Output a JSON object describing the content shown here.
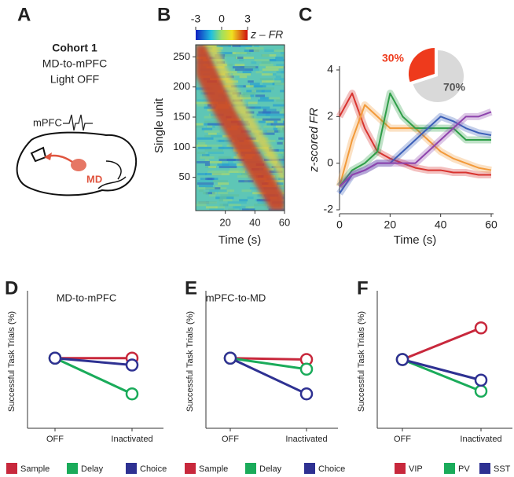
{
  "diagram": {
    "panel": "A",
    "title": "Cohort 1",
    "lines": [
      "MD-to-mPFC",
      "Light OFF"
    ],
    "region_labels": [
      "mPFC",
      "MD"
    ]
  },
  "chart_data": [
    {
      "type": "heatmap",
      "panel": "B",
      "ylabel": "Single unit",
      "xlabel": "Time (s)",
      "xlim": [
        0,
        60
      ],
      "xticks": [
        20,
        40,
        60
      ],
      "ylim": [
        0,
        270
      ],
      "yticks": [
        50,
        100,
        150,
        200,
        250
      ],
      "colorbar": {
        "label": "z – FR",
        "lim": [
          -3,
          3
        ],
        "ticks": [
          -3,
          0,
          3
        ]
      }
    },
    {
      "type": "line",
      "panel": "C",
      "ylabel": "z-scored FR",
      "xlabel": "Time (s)",
      "xlim": [
        0,
        60
      ],
      "xticks": [
        0,
        20,
        40,
        60
      ],
      "ylim": [
        -2,
        4
      ],
      "yticks": [
        -2,
        0,
        2,
        4
      ],
      "x": [
        0,
        5,
        10,
        15,
        20,
        25,
        30,
        35,
        40,
        45,
        50,
        55,
        60
      ],
      "series": [
        {
          "color": "#d8332f",
          "values": [
            2,
            3,
            1.5,
            0.5,
            0.2,
            0,
            -0.2,
            -0.3,
            -0.3,
            -0.4,
            -0.4,
            -0.5,
            -0.5
          ]
        },
        {
          "color": "#f29a3a",
          "values": [
            -1,
            1,
            2.5,
            2,
            1.5,
            1.5,
            1.5,
            1,
            0.5,
            0.2,
            0,
            -0.2,
            -0.3
          ]
        },
        {
          "color": "#2e9e48",
          "values": [
            -1,
            -0.3,
            0,
            0.5,
            3,
            2,
            1.5,
            1.5,
            1.5,
            1.5,
            1,
            1,
            1
          ]
        },
        {
          "color": "#3b5fb8",
          "values": [
            -1.3,
            -0.5,
            -0.3,
            0,
            0,
            0.5,
            1,
            1.5,
            2,
            1.8,
            1.5,
            1.3,
            1.2
          ]
        },
        {
          "color": "#8e44ad",
          "values": [
            -1,
            -0.5,
            -0.3,
            0,
            0,
            0,
            0,
            0.5,
            1,
            1.5,
            2,
            2,
            2.2
          ]
        }
      ],
      "inset": {
        "type": "pie",
        "values": [
          30,
          70
        ],
        "value_labels": [
          "30%",
          "70%"
        ],
        "colors": [
          "#ee3a1c",
          "#d9d9d9"
        ]
      }
    },
    {
      "type": "dumbbell",
      "panel": "D",
      "title": "MD-to-mPFC",
      "ylabel": "Successful Task Trials (%)",
      "categories": [
        "OFF",
        "Inactivated"
      ],
      "ylim": [
        0,
        100
      ],
      "series": [
        {
          "name": "Sample",
          "color": "#c8283c",
          "values": [
            51,
            51
          ]
        },
        {
          "name": "Delay",
          "color": "#1aab5a",
          "values": [
            51,
            25
          ]
        },
        {
          "name": "Choice",
          "color": "#2e3192",
          "values": [
            51,
            46
          ]
        }
      ]
    },
    {
      "type": "dumbbell",
      "panel": "E",
      "title": "mPFC-to-MD",
      "ylabel": "Successful Task Trials (%)",
      "categories": [
        "OFF",
        "Inactivated"
      ],
      "ylim": [
        0,
        100
      ],
      "series": [
        {
          "name": "Sample",
          "color": "#c8283c",
          "values": [
            51,
            50
          ]
        },
        {
          "name": "Delay",
          "color": "#1aab5a",
          "values": [
            51,
            43
          ]
        },
        {
          "name": "Choice",
          "color": "#2e3192",
          "values": [
            51,
            25
          ]
        }
      ]
    },
    {
      "type": "dumbbell",
      "panel": "F",
      "ylabel": "Successful Task Trials (%)",
      "categories": [
        "OFF",
        "Inactivated"
      ],
      "ylim": [
        0,
        100
      ],
      "series": [
        {
          "name": "VIP",
          "color": "#c8283c",
          "values": [
            50,
            73
          ]
        },
        {
          "name": "PV",
          "color": "#1aab5a",
          "values": [
            50,
            27
          ]
        },
        {
          "name": "SST",
          "color": "#2e3192",
          "values": [
            50,
            35
          ]
        }
      ]
    }
  ]
}
